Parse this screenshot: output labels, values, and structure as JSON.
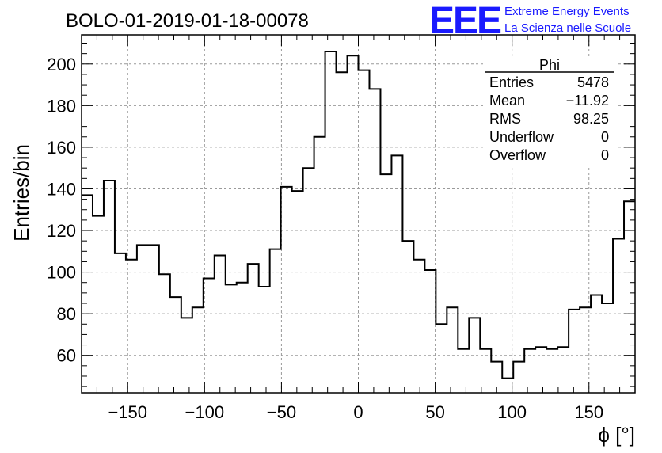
{
  "title": "BOLO-01-2019-01-18-00078",
  "logo": {
    "mark": "EEE",
    "line1": "Extreme Energy Events",
    "line2": "La Scienza nelle Scuole",
    "color": "#1a1aff"
  },
  "stats": {
    "name": "Phi",
    "rows": [
      {
        "label": "Entries",
        "value": "5478"
      },
      {
        "label": "Mean",
        "value": "−11.92"
      },
      {
        "label": "RMS",
        "value": "98.25"
      },
      {
        "label": "Underflow",
        "value": "0"
      },
      {
        "label": "Overflow",
        "value": "0"
      }
    ]
  },
  "chart_data": {
    "type": "histogram",
    "xlabel": "ϕ [°]",
    "ylabel": "Entries/bin",
    "xlim": [
      -180,
      180
    ],
    "ylim": [
      42,
      214
    ],
    "bin_width": 7.2,
    "xticks": [
      -150,
      -100,
      -50,
      0,
      50,
      100,
      150
    ],
    "xtick_labels": [
      "−150",
      "−100",
      "−50",
      "0",
      "50",
      "100",
      "150"
    ],
    "yticks": [
      60,
      80,
      100,
      120,
      140,
      160,
      180,
      200
    ],
    "ytick_labels": [
      "60",
      "80",
      "100",
      "120",
      "140",
      "160",
      "180",
      "200"
    ],
    "grid": true,
    "values": [
      137,
      127,
      144,
      109,
      106,
      113,
      113,
      99,
      88,
      78,
      83,
      97,
      108,
      94,
      95,
      104,
      93,
      111,
      141,
      139,
      150,
      165,
      206,
      196,
      204,
      197,
      188,
      147,
      156,
      115,
      106,
      101,
      75,
      83,
      63,
      78,
      63,
      57,
      49,
      57,
      63,
      64,
      63,
      64,
      82,
      83,
      89,
      85,
      116,
      134
    ]
  }
}
